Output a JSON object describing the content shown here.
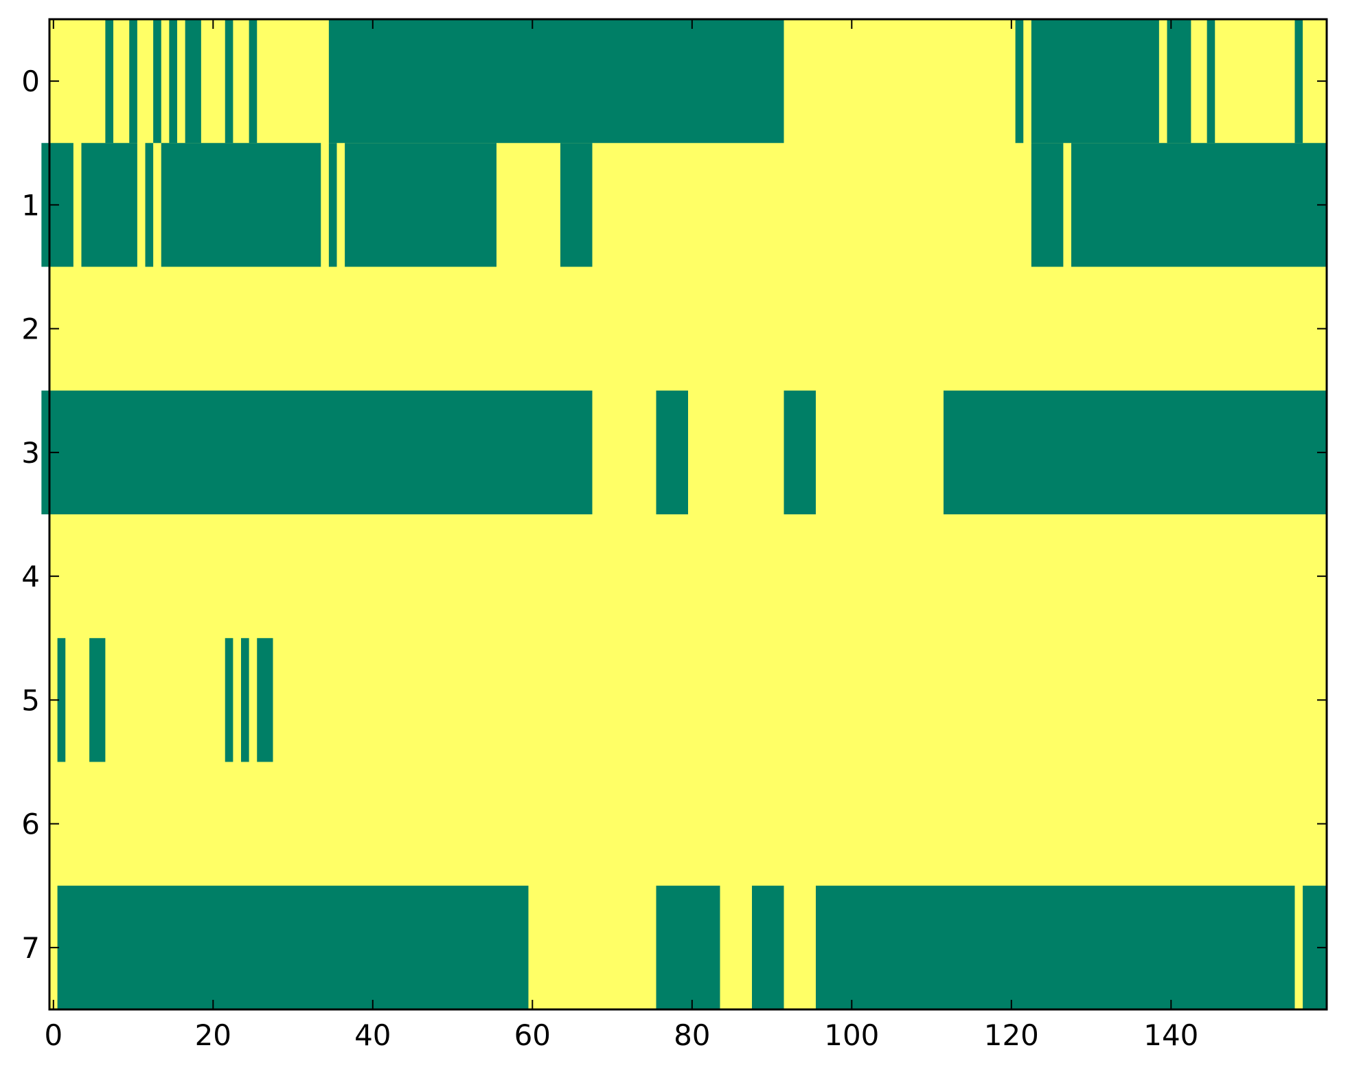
{
  "chart_data": {
    "type": "heatmap",
    "title": "",
    "xlabel": "",
    "ylabel": "",
    "xlim": [
      -0.5,
      159.5
    ],
    "ylim": [
      7.5,
      -0.5
    ],
    "grid": false,
    "colors": {
      "zero": "#007f66",
      "one": "#ffff66"
    },
    "x_ticks": [
      0,
      20,
      40,
      60,
      80,
      100,
      120,
      140
    ],
    "x_tick_labels": [
      "0",
      "20",
      "40",
      "60",
      "80",
      "100",
      "120",
      "140"
    ],
    "y_ticks": [
      0,
      1,
      2,
      3,
      4,
      5,
      6,
      7
    ],
    "y_tick_labels": [
      "0",
      "1",
      "2",
      "3",
      "4",
      "5",
      "6",
      "7"
    ],
    "columns": 160,
    "rows": [
      {
        "row": 0,
        "zero_runs": [
          [
            7,
            7
          ],
          [
            10,
            10
          ],
          [
            13,
            13
          ],
          [
            15,
            15
          ],
          [
            17,
            18
          ],
          [
            22,
            22
          ],
          [
            25,
            25
          ],
          [
            35,
            91
          ],
          [
            121,
            121
          ],
          [
            123,
            138
          ],
          [
            140,
            142
          ],
          [
            145,
            145
          ],
          [
            156,
            156
          ]
        ]
      },
      {
        "row": 1,
        "zero_runs": [
          [
            -1,
            2
          ],
          [
            4,
            10
          ],
          [
            12,
            12
          ],
          [
            14,
            33
          ],
          [
            35,
            35
          ],
          [
            37,
            55
          ],
          [
            64,
            67
          ],
          [
            123,
            126
          ],
          [
            128,
            159
          ]
        ]
      },
      {
        "row": 2,
        "zero_runs": []
      },
      {
        "row": 3,
        "zero_runs": [
          [
            -1,
            67
          ],
          [
            76,
            79
          ],
          [
            92,
            95
          ],
          [
            112,
            159
          ]
        ]
      },
      {
        "row": 4,
        "zero_runs": []
      },
      {
        "row": 5,
        "zero_runs": [
          [
            1,
            1
          ],
          [
            5,
            6
          ],
          [
            22,
            22
          ],
          [
            24,
            24
          ],
          [
            26,
            27
          ]
        ]
      },
      {
        "row": 6,
        "zero_runs": []
      },
      {
        "row": 7,
        "zero_runs": [
          [
            1,
            59
          ],
          [
            76,
            83
          ],
          [
            88,
            91
          ],
          [
            96,
            155
          ],
          [
            157,
            159
          ]
        ]
      }
    ]
  }
}
